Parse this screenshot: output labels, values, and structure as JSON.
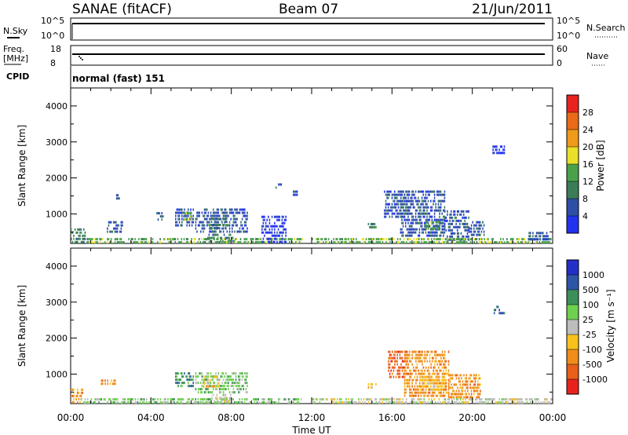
{
  "header": {
    "station": "SANAE (fitACF)",
    "beam": "Beam 07",
    "date": "21/Jun/2011"
  },
  "top_panels": {
    "nsky_label": "N.Sky",
    "nsky_ticks": [
      "10^5",
      "10^0"
    ],
    "nsearch_label": "N.Search",
    "nsearch_ticks": [
      "10^5",
      "10^0"
    ],
    "freq_label": [
      "Freq.",
      "[MHz]"
    ],
    "freq_ticks": [
      "18",
      "8"
    ],
    "nave_label": "Nave",
    "nave_ticks": [
      "60",
      "0"
    ],
    "cpid_label": "CPID",
    "cpid_value": "normal (fast) 151"
  },
  "colors": {
    "power": [
      "#2233ee",
      "#2e4fa6",
      "#3a7d58",
      "#4aa14a",
      "#e8e029",
      "#ee9a1a",
      "#ea6a18",
      "#e8231f"
    ],
    "velocity": [
      "#e8231f",
      "#e85f1a",
      "#f08d1a",
      "#f7c21c",
      "#bdbdbd",
      "#6fd04f",
      "#3d8f5a",
      "#2e56a6",
      "#2330c8"
    ],
    "nsky_line": "#000000",
    "freq_line": "#000000"
  },
  "chart_data": [
    {
      "type": "heatmap",
      "title": "",
      "xlabel": "Time UT",
      "ylabel": "Slant Range [km]",
      "xlim": [
        0,
        24
      ],
      "ylim": [
        180,
        4500
      ],
      "x_ticks": [
        "00:00",
        "04:00",
        "08:00",
        "12:00",
        "16:00",
        "20:00",
        "00:00"
      ],
      "y_ticks": [
        "1000",
        "2000",
        "3000",
        "4000"
      ],
      "colorbar": {
        "label": "Power [dB]",
        "ticks": [
          "4",
          "8",
          "12",
          "16",
          "20",
          "24",
          "28"
        ]
      },
      "regions": [
        {
          "x": [
            0.0,
            0.8
          ],
          "y": [
            200,
            600
          ],
          "level": 2
        },
        {
          "x": [
            0.8,
            11.5
          ],
          "y": [
            180,
            330
          ],
          "level": 3
        },
        {
          "x": [
            1.8,
            2.6
          ],
          "y": [
            500,
            800
          ],
          "level": 1
        },
        {
          "x": [
            2.2,
            2.4
          ],
          "y": [
            1400,
            1550
          ],
          "level": 1
        },
        {
          "x": [
            4.2,
            4.6
          ],
          "y": [
            850,
            1050
          ],
          "level": 1
        },
        {
          "x": [
            5.2,
            6.1
          ],
          "y": [
            700,
            1150
          ],
          "level": 1
        },
        {
          "x": [
            5.6,
            6.0
          ],
          "y": [
            850,
            1050
          ],
          "level": 3
        },
        {
          "x": [
            6.2,
            8.8
          ],
          "y": [
            500,
            1150
          ],
          "level": 1
        },
        {
          "x": [
            6.8,
            7.8
          ],
          "y": [
            600,
            900
          ],
          "level": 2
        },
        {
          "x": [
            6.8,
            8.2
          ],
          "y": [
            250,
            450
          ],
          "level": 2
        },
        {
          "x": [
            9.5,
            10.7
          ],
          "y": [
            250,
            950
          ],
          "level": 0
        },
        {
          "x": [
            10.2,
            10.6
          ],
          "y": [
            1700,
            1850
          ],
          "level": 1
        },
        {
          "x": [
            11.0,
            11.3
          ],
          "y": [
            1500,
            1650
          ],
          "level": 1
        },
        {
          "x": [
            14.8,
            15.2
          ],
          "y": [
            600,
            750
          ],
          "level": 2
        },
        {
          "x": [
            15.6,
            16.8
          ],
          "y": [
            900,
            1650
          ],
          "level": 1
        },
        {
          "x": [
            16.4,
            18.6
          ],
          "y": [
            350,
            1650
          ],
          "level": 1
        },
        {
          "x": [
            17.6,
            18.4
          ],
          "y": [
            600,
            800
          ],
          "level": 3
        },
        {
          "x": [
            18.6,
            19.8
          ],
          "y": [
            300,
            1100
          ],
          "level": 1
        },
        {
          "x": [
            19.8,
            20.6
          ],
          "y": [
            400,
            800
          ],
          "level": 1
        },
        {
          "x": [
            21.0,
            21.6
          ],
          "y": [
            2650,
            2900
          ],
          "level": 0
        },
        {
          "x": [
            12.0,
            24.0
          ],
          "y": [
            180,
            330
          ],
          "level": 3
        },
        {
          "x": [
            22.8,
            23.8
          ],
          "y": [
            300,
            500
          ],
          "level": 1
        }
      ]
    },
    {
      "type": "heatmap",
      "title": "",
      "xlabel": "Time UT",
      "ylabel": "Slant Range [km]",
      "xlim": [
        0,
        24
      ],
      "ylim": [
        180,
        4500
      ],
      "x_ticks": [
        "00:00",
        "04:00",
        "08:00",
        "12:00",
        "16:00",
        "20:00",
        "00:00"
      ],
      "y_ticks": [
        "1000",
        "2000",
        "3000",
        "4000"
      ],
      "colorbar": {
        "label": "Velocity [m s⁻¹]",
        "ticks": [
          "1000",
          "500",
          "100",
          "25",
          "-25",
          "-100",
          "-500",
          "-1000"
        ]
      },
      "regions": [
        {
          "x": [
            0.0,
            0.6
          ],
          "y": [
            250,
            600
          ],
          "level": 2
        },
        {
          "x": [
            0.5,
            11.5
          ],
          "y": [
            180,
            330
          ],
          "level": 5
        },
        {
          "x": [
            1.5,
            2.2
          ],
          "y": [
            700,
            850
          ],
          "level": 2
        },
        {
          "x": [
            5.2,
            6.1
          ],
          "y": [
            700,
            1050
          ],
          "level": 6
        },
        {
          "x": [
            6.2,
            8.8
          ],
          "y": [
            450,
            1050
          ],
          "level": 5
        },
        {
          "x": [
            6.6,
            7.4
          ],
          "y": [
            650,
            950
          ],
          "level": 3
        },
        {
          "x": [
            7.0,
            8.0
          ],
          "y": [
            250,
            450
          ],
          "level": 4
        },
        {
          "x": [
            14.8,
            15.2
          ],
          "y": [
            600,
            750
          ],
          "level": 3
        },
        {
          "x": [
            15.8,
            16.8
          ],
          "y": [
            900,
            1650
          ],
          "level": 1
        },
        {
          "x": [
            16.6,
            18.8
          ],
          "y": [
            400,
            1650
          ],
          "level": 2
        },
        {
          "x": [
            17.4,
            18.6
          ],
          "y": [
            550,
            950
          ],
          "level": 3
        },
        {
          "x": [
            18.8,
            20.4
          ],
          "y": [
            350,
            1000
          ],
          "level": 2
        },
        {
          "x": [
            21.0,
            21.6
          ],
          "y": [
            2650,
            2900
          ],
          "level": 7
        },
        {
          "x": [
            12.0,
            24.0
          ],
          "y": [
            180,
            330
          ],
          "level": 4
        }
      ]
    }
  ]
}
